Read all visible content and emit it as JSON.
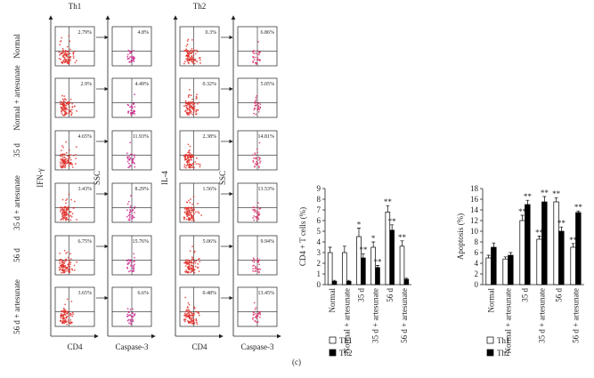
{
  "flow": {
    "columns": [
      {
        "header": "Th1",
        "y_label": "IFN-γ",
        "x_label": "CD4"
      },
      {
        "y_label": "SSC",
        "x_label": "Caspase-3"
      },
      {
        "header": "Th2",
        "y_label": "IL-4",
        "x_label": "CD4"
      },
      {
        "y_label": "SSC",
        "x_label": "Caspase-3"
      }
    ],
    "rows": [
      {
        "label": "Normal",
        "percents": [
          "2.79%",
          "4.8%",
          "0.3%",
          "6.86%"
        ]
      },
      {
        "label": "Normal + artesunate",
        "percents": [
          "2.9%",
          "4.49%",
          "0.32%",
          "5.05%"
        ]
      },
      {
        "label": "35 d",
        "percents": [
          "4.65%",
          "11.93%",
          "2.38%",
          "14.81%"
        ]
      },
      {
        "label": "35 d + artesunate",
        "percents": [
          "3.43%",
          "8.29%",
          "1.56%",
          "13.53%"
        ]
      },
      {
        "label": "56 d",
        "percents": [
          "6.75%",
          "15.76%",
          "5.06%",
          "9.94%"
        ]
      },
      {
        "label": "56 d + artesunate",
        "percents": [
          "3.65%",
          "6.6%",
          "0.48%",
          "13.45%"
        ]
      }
    ]
  },
  "caption": "(c)",
  "chart_data": [
    {
      "type": "bar",
      "y_label": "CD4 + T cells (%)",
      "categories": [
        "Normal",
        "Normal + artesunate",
        "35 d",
        "35 d + artesunate",
        "56 d",
        "56 d + artesunate"
      ],
      "ylim": [
        0,
        9
      ],
      "yticks": [
        0,
        1,
        2,
        3,
        4,
        5,
        6,
        7,
        8,
        9
      ],
      "series": [
        {
          "name": "Th1",
          "color": "#ffffff",
          "values": [
            3.0,
            3.0,
            4.5,
            3.5,
            6.8,
            3.6
          ],
          "errors": [
            0.5,
            0.6,
            0.8,
            0.5,
            0.6,
            0.5
          ],
          "annotations": [
            null,
            null,
            "*",
            "*",
            "**",
            "**"
          ]
        },
        {
          "name": "Th2",
          "color": "#000000",
          "values": [
            0.3,
            0.3,
            2.5,
            1.6,
            5.1,
            0.5
          ],
          "errors": [
            0.1,
            0.1,
            0.4,
            0.2,
            0.5,
            0.1
          ],
          "annotations": [
            null,
            null,
            "**",
            "**",
            "**",
            null
          ]
        }
      ]
    },
    {
      "type": "bar",
      "y_label": "Apoptosis (%)",
      "categories": [
        "Normal",
        "Normal + artesunate",
        "35 d",
        "35 d + artesunate",
        "56 d",
        "56 d + artesunate"
      ],
      "ylim": [
        0,
        18
      ],
      "yticks": [
        0,
        2,
        4,
        6,
        8,
        10,
        12,
        14,
        16,
        18
      ],
      "series": [
        {
          "name": "Th1",
          "color": "#ffffff",
          "values": [
            5.0,
            4.8,
            12.0,
            8.5,
            15.5,
            7.0
          ],
          "errors": [
            0.5,
            0.4,
            1.0,
            0.6,
            0.8,
            0.7
          ],
          "annotations": [
            null,
            null,
            "**",
            "**",
            "**",
            "**"
          ]
        },
        {
          "name": "Th2",
          "color": "#000000",
          "values": [
            7.0,
            5.5,
            15.0,
            15.5,
            10.0,
            13.5
          ],
          "errors": [
            0.8,
            0.5,
            0.8,
            1.0,
            0.8,
            0.3
          ],
          "annotations": [
            null,
            null,
            "**",
            "**",
            "**",
            "**"
          ]
        }
      ]
    }
  ]
}
